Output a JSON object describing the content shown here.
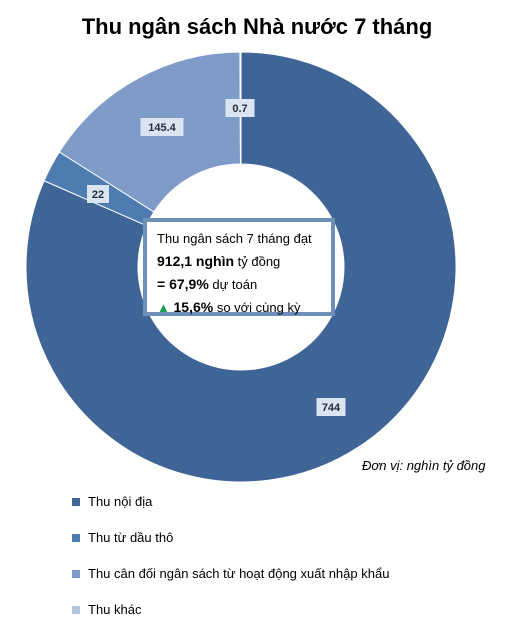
{
  "chart_data": {
    "type": "pie",
    "title": "Thu ngân sách Nhà nước 7 tháng",
    "unit_note": "Đơn vị: nghìn tỷ đồng",
    "categories": [
      "Thu nội địa",
      "Thu từ dầu thô",
      "Thu cân đối ngân sách từ hoạt động xuất nhập khẩu",
      "Thu khác"
    ],
    "values": [
      744,
      22,
      145.4,
      0.7
    ],
    "data_labels": [
      "744",
      "22",
      "145.4",
      "0.7"
    ],
    "colors": [
      "#3f6496",
      "#4f7cb0",
      "#7f9cc8",
      "#b4c7e2"
    ],
    "legend_position": "bottom-left"
  },
  "center_box": {
    "line1": "Thu ngân sách 7 tháng đạt",
    "line2_bold": "912,1 nghìn",
    "line2_rest": " tỷ đồng",
    "line3_bold": "= 67,9%",
    "line3_rest": " dự toán",
    "line4_icon": "▲",
    "line4_bold": "15,6%",
    "line4_rest": " so với cùng kỳ"
  }
}
